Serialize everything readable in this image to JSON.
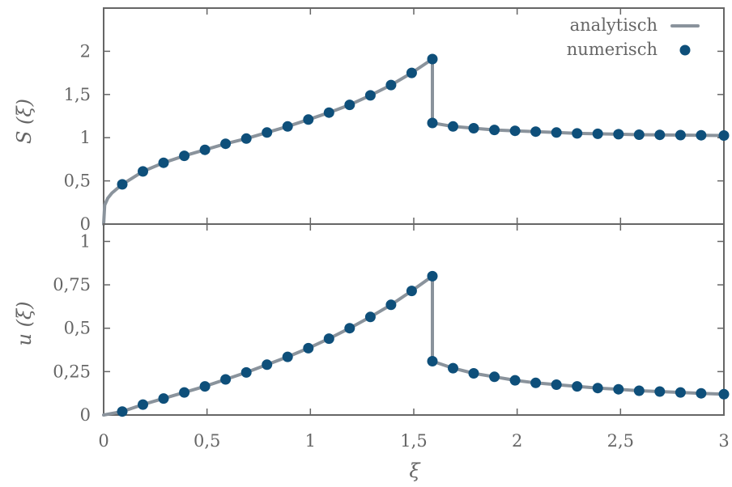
{
  "colors": {
    "analytic_line": "#8a939c",
    "numeric_points": "#0e4f7a",
    "axes": "#666666"
  },
  "chart_data": {
    "type": "line",
    "xlabel": "ξ",
    "x_ticks": [
      "0",
      "0,5",
      "1",
      "1,5",
      "2",
      "2,5",
      "3"
    ],
    "x_tick_values": [
      0,
      0.5,
      1,
      1.5,
      2,
      2.5,
      3
    ],
    "xlim": [
      0,
      3
    ],
    "legend": {
      "placement": "top-right",
      "entries": [
        {
          "label": "analytisch",
          "marker": "line"
        },
        {
          "label": "numerisch",
          "marker": "circle"
        }
      ]
    },
    "panels": [
      {
        "id": "S",
        "ylabel": "S (ξ)",
        "ylim": [
          0,
          2.5
        ],
        "y_ticks": [
          "0",
          "0,5",
          "1",
          "1,5",
          "2"
        ],
        "y_tick_values": [
          0,
          0.5,
          1,
          1.5,
          2
        ],
        "series": [
          {
            "name": "analytisch",
            "style": "line",
            "x": [
              0,
              0.005,
              0.02,
              0.04,
              0.07,
              0.09,
              0.19,
              0.29,
              0.39,
              0.49,
              0.59,
              0.69,
              0.79,
              0.89,
              0.99,
              1.09,
              1.19,
              1.29,
              1.39,
              1.49,
              1.59,
              1.59,
              1.69,
              1.79,
              1.89,
              1.99,
              2.09,
              2.19,
              2.29,
              2.39,
              2.49,
              2.59,
              2.69,
              2.79,
              2.89,
              3.0
            ],
            "y": [
              0,
              0.22,
              0.3,
              0.36,
              0.42,
              0.46,
              0.61,
              0.71,
              0.79,
              0.86,
              0.93,
              0.99,
              1.06,
              1.13,
              1.21,
              1.29,
              1.38,
              1.49,
              1.61,
              1.75,
              1.91,
              1.17,
              1.13,
              1.11,
              1.09,
              1.08,
              1.07,
              1.06,
              1.05,
              1.045,
              1.04,
              1.035,
              1.033,
              1.03,
              1.028,
              1.025
            ]
          },
          {
            "name": "numerisch",
            "style": "points",
            "x": [
              0.09,
              0.19,
              0.29,
              0.39,
              0.49,
              0.59,
              0.69,
              0.79,
              0.89,
              0.99,
              1.09,
              1.19,
              1.29,
              1.39,
              1.49,
              1.59,
              1.59,
              1.69,
              1.79,
              1.89,
              1.99,
              2.09,
              2.19,
              2.29,
              2.39,
              2.49,
              2.59,
              2.69,
              2.79,
              2.89,
              3.0
            ],
            "y": [
              0.46,
              0.61,
              0.71,
              0.79,
              0.86,
              0.93,
              0.99,
              1.06,
              1.13,
              1.21,
              1.29,
              1.38,
              1.49,
              1.61,
              1.75,
              1.91,
              1.17,
              1.13,
              1.11,
              1.09,
              1.08,
              1.07,
              1.06,
              1.05,
              1.045,
              1.04,
              1.035,
              1.033,
              1.03,
              1.028,
              1.025
            ]
          }
        ]
      },
      {
        "id": "u",
        "ylabel": "u (ξ)",
        "ylim": [
          0,
          1.1
        ],
        "y_ticks": [
          "0",
          "0,25",
          "0,5",
          "0,75",
          "1"
        ],
        "y_tick_values": [
          0,
          0.25,
          0.5,
          0.75,
          1
        ],
        "series": [
          {
            "name": "analytisch",
            "style": "line",
            "x": [
              0,
              0.09,
              0.19,
              0.29,
              0.39,
              0.49,
              0.59,
              0.69,
              0.79,
              0.89,
              0.99,
              1.09,
              1.19,
              1.29,
              1.39,
              1.49,
              1.59,
              1.59,
              1.69,
              1.79,
              1.89,
              1.99,
              2.09,
              2.19,
              2.29,
              2.39,
              2.49,
              2.59,
              2.69,
              2.79,
              2.89,
              3.0
            ],
            "y": [
              0,
              0.02,
              0.06,
              0.095,
              0.13,
              0.165,
              0.205,
              0.245,
              0.29,
              0.335,
              0.385,
              0.44,
              0.5,
              0.565,
              0.635,
              0.715,
              0.8,
              0.31,
              0.27,
              0.24,
              0.22,
              0.2,
              0.185,
              0.175,
              0.165,
              0.155,
              0.148,
              0.14,
              0.135,
              0.13,
              0.125,
              0.12
            ]
          },
          {
            "name": "numerisch",
            "style": "points",
            "x": [
              0.09,
              0.19,
              0.29,
              0.39,
              0.49,
              0.59,
              0.69,
              0.79,
              0.89,
              0.99,
              1.09,
              1.19,
              1.29,
              1.39,
              1.49,
              1.59,
              1.59,
              1.69,
              1.79,
              1.89,
              1.99,
              2.09,
              2.19,
              2.29,
              2.39,
              2.49,
              2.59,
              2.69,
              2.79,
              2.89,
              3.0
            ],
            "y": [
              0.02,
              0.06,
              0.095,
              0.13,
              0.165,
              0.205,
              0.245,
              0.29,
              0.335,
              0.385,
              0.44,
              0.5,
              0.565,
              0.635,
              0.715,
              0.8,
              0.31,
              0.27,
              0.24,
              0.22,
              0.2,
              0.185,
              0.175,
              0.165,
              0.155,
              0.148,
              0.14,
              0.135,
              0.13,
              0.125,
              0.12
            ]
          }
        ]
      }
    ]
  }
}
